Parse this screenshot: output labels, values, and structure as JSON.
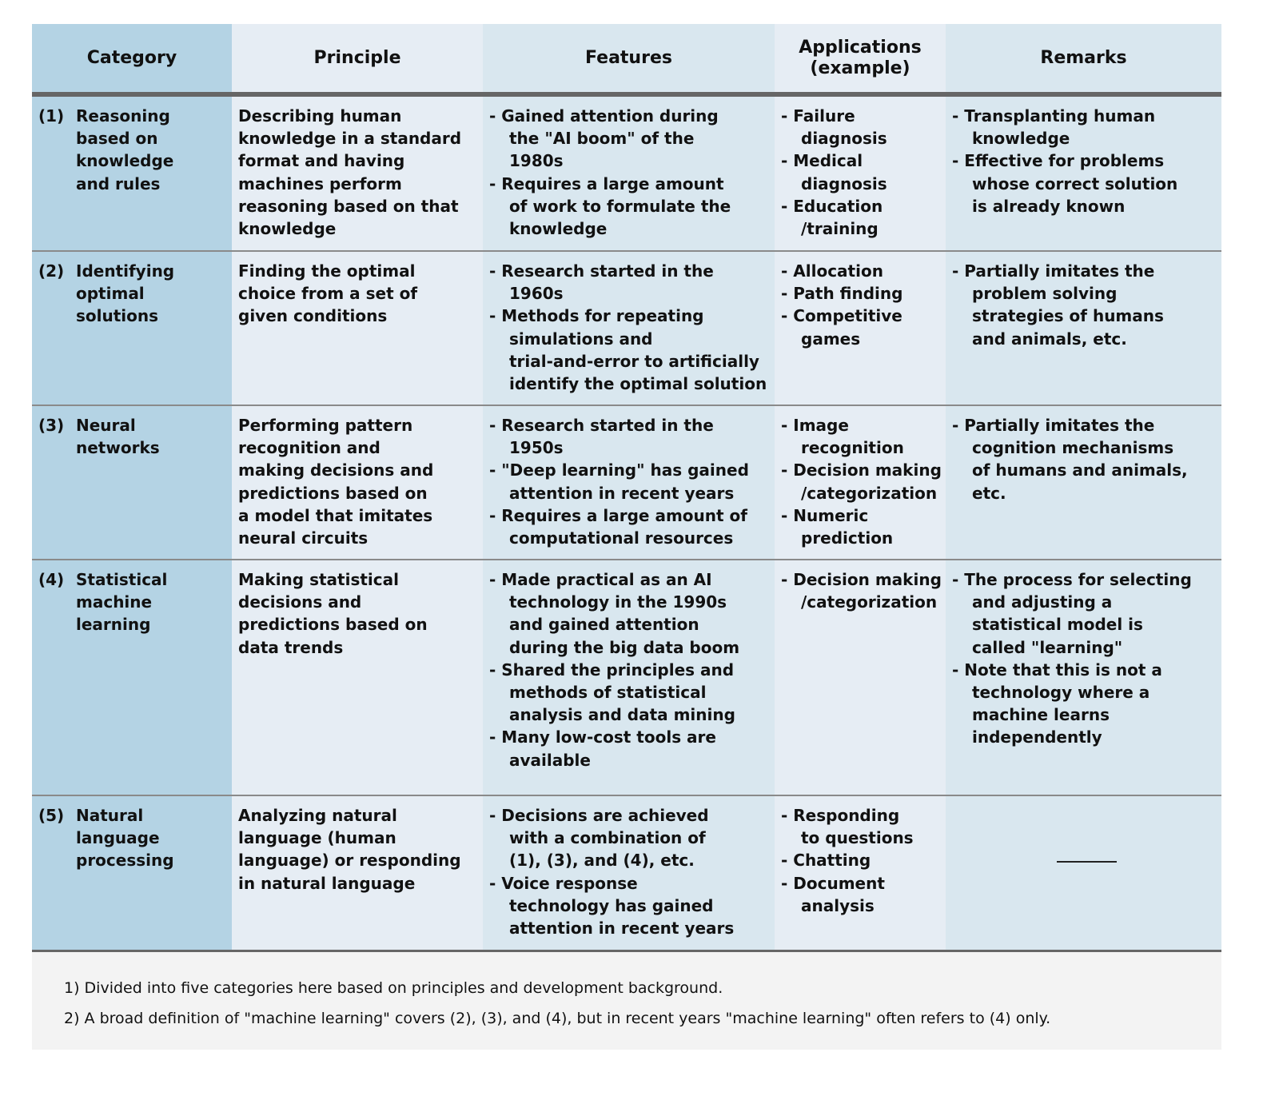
{
  "headers": [
    "Category",
    "Principle",
    "Features",
    "Applications\n(example)",
    "Remarks"
  ],
  "colors": {
    "category_bg": "#b4d3e4",
    "light_bg": "#e6edf4",
    "mid_bg": "#d9e7ef",
    "rule": "#666666",
    "footnote_bg": "#f3f3f3"
  },
  "rows": [
    {
      "num": "(1)",
      "category": [
        "Reasoning",
        "based on",
        "knowledge",
        "and rules"
      ],
      "principle": [
        "Describing human",
        "knowledge in a standard",
        "format and having",
        "machines perform",
        "reasoning based on that",
        "knowledge"
      ],
      "features": [
        [
          "- Gained attention during",
          "the \"AI boom\" of the",
          "1980s"
        ],
        [
          "- Requires a large amount",
          "of work to formulate the",
          "knowledge"
        ]
      ],
      "applications": [
        [
          "- Failure",
          "diagnosis"
        ],
        [
          "- Medical",
          "diagnosis"
        ],
        [
          "- Education",
          "/training"
        ]
      ],
      "remarks": [
        [
          "- Transplanting human",
          "knowledge"
        ],
        [
          "- Effective for problems",
          "whose correct solution",
          "is already known"
        ]
      ]
    },
    {
      "num": "(2)",
      "category": [
        "Identifying",
        "optimal",
        "solutions"
      ],
      "principle": [
        "Finding the optimal",
        "choice from a set of",
        "given conditions"
      ],
      "features": [
        [
          "- Research started in the",
          "1960s"
        ],
        [
          "- Methods for repeating",
          "simulations and",
          "trial-and-error to artificially",
          "identify the optimal solution"
        ]
      ],
      "applications": [
        [
          "- Allocation"
        ],
        [
          "- Path finding"
        ],
        [
          "- Competitive",
          "games"
        ]
      ],
      "remarks": [
        [
          "- Partially imitates the",
          "problem solving",
          "strategies of humans",
          "and animals, etc."
        ]
      ]
    },
    {
      "num": "(3)",
      "category": [
        "Neural",
        "networks"
      ],
      "principle": [
        "Performing pattern",
        "recognition and",
        "making decisions and",
        "predictions based on",
        "a model that imitates",
        "neural circuits"
      ],
      "features": [
        [
          "- Research started in the",
          "1950s"
        ],
        [
          "- \"Deep learning\" has gained",
          "attention in recent years"
        ],
        [
          "- Requires a large amount of",
          "computational resources"
        ]
      ],
      "applications": [
        [
          "- Image",
          "recognition"
        ],
        [
          "- Decision making",
          "/categorization"
        ],
        [
          "- Numeric",
          "prediction"
        ]
      ],
      "remarks": [
        [
          "- Partially imitates the",
          "cognition mechanisms",
          "of humans and animals,",
          "etc."
        ]
      ]
    },
    {
      "num": "(4)",
      "category": [
        "Statistical",
        "machine",
        "learning"
      ],
      "principle": [
        "Making statistical",
        "decisions and",
        "predictions based on",
        "data trends"
      ],
      "features": [
        [
          "- Made practical as an AI",
          "technology in the 1990s",
          "and gained attention",
          "during the big data boom"
        ],
        [
          "- Shared the principles and",
          "methods of statistical",
          "analysis and data mining"
        ],
        [
          "- Many low-cost tools are",
          "available"
        ]
      ],
      "applications": [
        [
          "- Decision making",
          "/categorization"
        ]
      ],
      "remarks": [
        [
          "- The process for selecting",
          "and adjusting a",
          "statistical model is",
          "called \"learning\""
        ],
        [
          "- Note that this is not a",
          "technology where a",
          "machine learns",
          "independently"
        ]
      ]
    },
    {
      "num": "(5)",
      "category": [
        "Natural",
        "language",
        "processing"
      ],
      "principle": [
        "Analyzing natural",
        "language (human",
        "language) or responding",
        "in natural language"
      ],
      "features": [
        [
          "- Decisions are achieved",
          "with a combination of",
          "(1), (3), and (4), etc."
        ],
        [
          "- Voice response",
          "technology has gained",
          "attention in recent years"
        ]
      ],
      "applications": [
        [
          "- Responding",
          "to questions"
        ],
        [
          "- Chatting"
        ],
        [
          "- Document",
          "analysis"
        ]
      ],
      "remarks": null
    }
  ],
  "footnotes": [
    "1) Divided into five categories here based on principles and development background.",
    "2) A broad definition of \"machine learning\" covers (2), (3), and (4), but in recent years \"machine learning\" often refers to (4) only."
  ]
}
